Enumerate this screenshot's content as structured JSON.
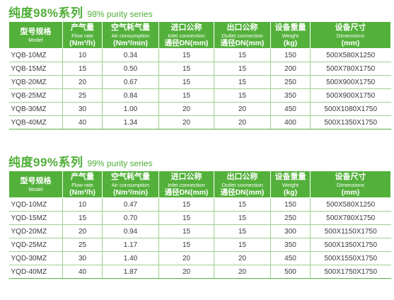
{
  "section_98": {
    "title_zh": "纯度98%系列",
    "title_en": "98% purity series",
    "headers": [
      {
        "zh": "型号规格",
        "en": "Model",
        "unit": ""
      },
      {
        "zh": "产气量",
        "en": "Flow rate",
        "unit": "(Nm³/h)"
      },
      {
        "zh": "空气耗气量",
        "en": "Air consumption",
        "unit": "(Nm³/min)"
      },
      {
        "zh": "进口公称",
        "en": "Inlet connection",
        "unit": "通径DN(mm)"
      },
      {
        "zh": "出口公称",
        "en": "Outlet connection",
        "unit": "通径DN(mm)"
      },
      {
        "zh": "设备重量",
        "en": "Weight",
        "unit": "(kg)"
      },
      {
        "zh": "设备尺寸",
        "en": "Dimensions",
        "unit": "(mm)"
      }
    ],
    "rows": [
      [
        "YQB-10MZ",
        "10",
        "0.34",
        "15",
        "15",
        "150",
        "500X580X1250"
      ],
      [
        "YQB-15MZ",
        "15",
        "0.50",
        "15",
        "15",
        "200",
        "500X780X1750"
      ],
      [
        "YQB-20MZ",
        "20",
        "0.67",
        "15",
        "15",
        "250",
        "500X900X1750"
      ],
      [
        "YQB-25MZ",
        "25",
        "0.84",
        "15",
        "15",
        "350",
        "500X900X1750"
      ],
      [
        "YQB-30MZ",
        "30",
        "1.00",
        "20",
        "20",
        "450",
        "500X1080X1750"
      ],
      [
        "YQB-40MZ",
        "40",
        "1.34",
        "20",
        "20",
        "400",
        "500X1350X1750"
      ]
    ]
  },
  "section_99": {
    "title_zh": "纯度99%系列",
    "title_en": "99% purity series",
    "headers": [
      {
        "zh": "型号规格",
        "en": "Model",
        "unit": ""
      },
      {
        "zh": "产气量",
        "en": "Flow rate",
        "unit": "(Nm³/h)"
      },
      {
        "zh": "空气耗气量",
        "en": "Air consumption",
        "unit": "(Nm³/min)"
      },
      {
        "zh": "进口公称",
        "en": "Inlet connection",
        "unit": "通径DN(mm)"
      },
      {
        "zh": "出口公称",
        "en": "Outlet connection",
        "unit": "通径DN(mm)"
      },
      {
        "zh": "设备重量",
        "en": "Weight",
        "unit": "(kg)"
      },
      {
        "zh": "设备尺寸",
        "en": "Dimensions",
        "unit": "(mm)"
      }
    ],
    "rows": [
      [
        "YQD-10MZ",
        "10",
        "0.47",
        "15",
        "15",
        "150",
        "500X580X1250"
      ],
      [
        "YQD-15MZ",
        "15",
        "0.70",
        "15",
        "15",
        "250",
        "500X780X1750"
      ],
      [
        "YQD-20MZ",
        "20",
        "0.94",
        "15",
        "15",
        "300",
        "500X1150X1750"
      ],
      [
        "YQD-25MZ",
        "25",
        "1.17",
        "15",
        "15",
        "350",
        "500X1350X1750"
      ],
      [
        "YQD-30MZ",
        "30",
        "1.40",
        "20",
        "20",
        "450",
        "500X1550X1750"
      ],
      [
        "YQD-40MZ",
        "40",
        "1.87",
        "20",
        "20",
        "500",
        "500X1750X1750"
      ]
    ]
  }
}
